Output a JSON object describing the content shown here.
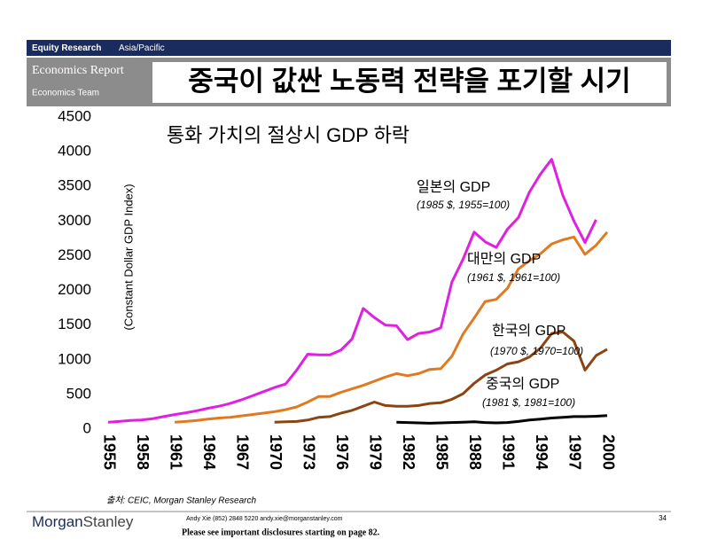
{
  "header": {
    "section": "Equity Research",
    "region": "Asia/Pacific",
    "report": "Economics Report",
    "team": "Economics Team",
    "title": "중국이 값싼 노동력 전략을 포기할 시기"
  },
  "chart_data": {
    "type": "line",
    "subtitle": "통화 가치의 절상시 GDP 하락",
    "y_label": "(Constant Dollar GDP Index)",
    "xlim": [
      1955,
      2000
    ],
    "xticks": [
      1955,
      1958,
      1961,
      1964,
      1967,
      1970,
      1973,
      1976,
      1979,
      1982,
      1985,
      1988,
      1991,
      1994,
      1997,
      2000
    ],
    "ylim": [
      0,
      4500
    ],
    "yticks": [
      0,
      500,
      1000,
      1500,
      2000,
      2500,
      3000,
      3500,
      4000,
      4500
    ],
    "series": [
      {
        "name": "일본의 GDP",
        "note": "(1985 $, 1955=100)",
        "color": "#e020e0",
        "x": [
          1955,
          1956,
          1957,
          1958,
          1959,
          1960,
          1961,
          1962,
          1963,
          1964,
          1965,
          1966,
          1967,
          1968,
          1969,
          1970,
          1971,
          1972,
          1973,
          1974,
          1975,
          1976,
          1977,
          1978,
          1979,
          1980,
          1981,
          1982,
          1983,
          1984,
          1985,
          1986,
          1987,
          1988,
          1989,
          1990,
          1991,
          1992,
          1993,
          1994,
          1995,
          1996,
          1997,
          1998,
          1999
        ],
        "values": [
          100,
          110,
          125,
          130,
          150,
          180,
          210,
          235,
          265,
          300,
          330,
          370,
          420,
          480,
          540,
          600,
          650,
          850,
          1080,
          1070,
          1070,
          1140,
          1300,
          1740,
          1610,
          1500,
          1490,
          1290,
          1380,
          1400,
          1460,
          2120,
          2450,
          2840,
          2700,
          2620,
          2880,
          3050,
          3420,
          3680,
          3890,
          3370,
          3000,
          2690,
          3020
        ]
      },
      {
        "name": "대만의 GDP",
        "note": "(1961 $, 1961=100)",
        "color": "#e07a22",
        "x": [
          1961,
          1962,
          1963,
          1964,
          1965,
          1966,
          1967,
          1968,
          1969,
          1970,
          1971,
          1972,
          1973,
          1974,
          1975,
          1976,
          1977,
          1978,
          1979,
          1980,
          1981,
          1982,
          1983,
          1984,
          1985,
          1986,
          1987,
          1988,
          1989,
          1990,
          1991,
          1992,
          1993,
          1994,
          1995,
          1996,
          1997,
          1998,
          1999,
          2000
        ],
        "values": [
          100,
          110,
          125,
          145,
          160,
          170,
          190,
          210,
          230,
          250,
          280,
          320,
          390,
          470,
          470,
          530,
          580,
          630,
          690,
          750,
          800,
          770,
          800,
          860,
          870,
          1050,
          1370,
          1600,
          1840,
          1870,
          2030,
          2310,
          2430,
          2530,
          2670,
          2730,
          2770,
          2520,
          2650,
          2840
        ]
      },
      {
        "name": "한국의 GDP",
        "note": "(1970 $, 1970=100)",
        "color": "#8b4513",
        "x": [
          1970,
          1971,
          1972,
          1973,
          1974,
          1975,
          1976,
          1977,
          1978,
          1979,
          1980,
          1981,
          1982,
          1983,
          1984,
          1985,
          1986,
          1987,
          1988,
          1989,
          1990,
          1991,
          1992,
          1993,
          1994,
          1995,
          1996,
          1997,
          1998,
          1999,
          2000
        ],
        "values": [
          100,
          105,
          110,
          130,
          170,
          180,
          230,
          270,
          330,
          390,
          340,
          330,
          330,
          340,
          370,
          380,
          430,
          510,
          660,
          780,
          850,
          940,
          970,
          1040,
          1170,
          1380,
          1400,
          1270,
          850,
          1060,
          1150
        ]
      },
      {
        "name": "중국의 GDP",
        "note": "(1981 $, 1981=100)",
        "color": "#000000",
        "x": [
          1981,
          1982,
          1983,
          1984,
          1985,
          1986,
          1987,
          1988,
          1989,
          1990,
          1991,
          1992,
          1993,
          1994,
          1995,
          1996,
          1997,
          1998,
          1999,
          2000
        ],
        "values": [
          100,
          95,
          90,
          85,
          90,
          95,
          100,
          105,
          95,
          90,
          95,
          110,
          130,
          145,
          160,
          170,
          180,
          180,
          185,
          195
        ]
      }
    ],
    "source": "출처: CEIC, Morgan Stanley Research"
  },
  "footer": {
    "brand_1": "Morgan",
    "brand_2": "Stanley",
    "contact": "Andy Xie (852) 2848 5220 andy.xie@morganstanley.com",
    "disclosure": "Please see important disclosures starting on page 82.",
    "page": "34"
  }
}
